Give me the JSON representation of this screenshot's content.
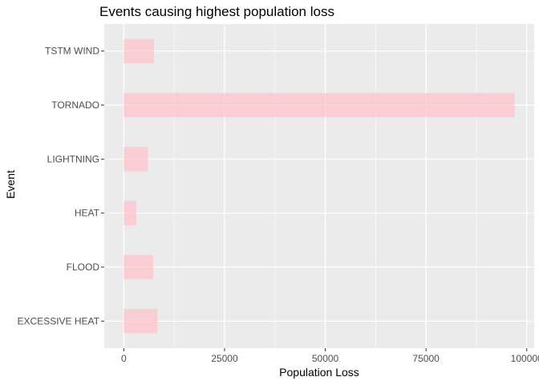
{
  "chart_data": {
    "type": "bar",
    "orientation": "horizontal",
    "title": "Events causing highest population loss",
    "xlabel": "Population Loss",
    "ylabel": "Event",
    "categories": [
      "EXCESSIVE HEAT",
      "FLOOD",
      "HEAT",
      "LIGHTNING",
      "TORNADO",
      "TSTM WIND"
    ],
    "values": [
      8400,
      7300,
      3100,
      6000,
      97000,
      7500
    ],
    "xlim": [
      -4850,
      101850
    ],
    "xticks": [
      0,
      25000,
      50000,
      75000,
      100000
    ],
    "xtick_labels": [
      "0",
      "25000",
      "50000",
      "75000",
      "100000"
    ],
    "grid": true,
    "bar_color": "#ffc0cb",
    "bar_opacity": 0.7,
    "panel_background": "#ebebeb",
    "grid_color": "#ffffff"
  }
}
